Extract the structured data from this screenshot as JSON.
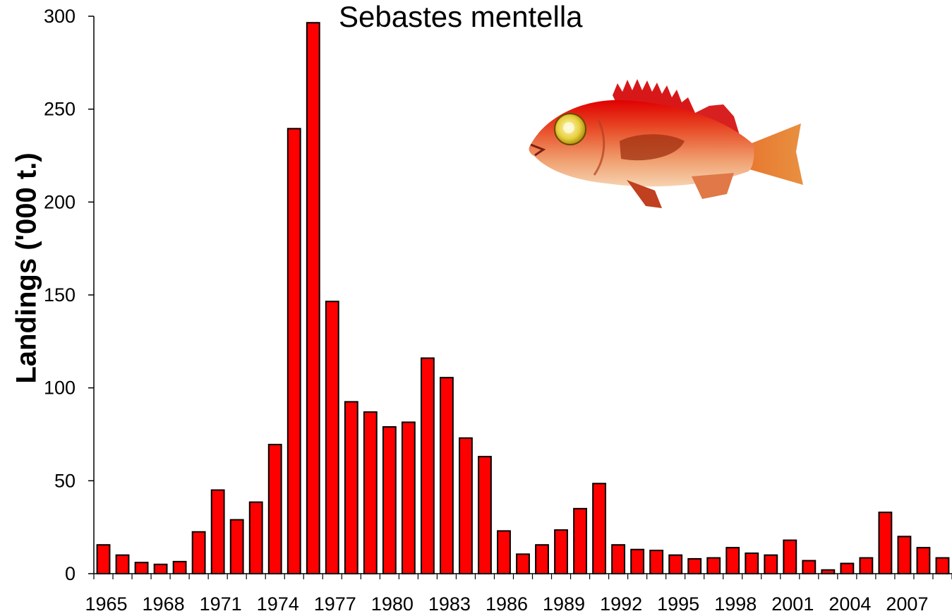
{
  "chart_data": {
    "type": "bar",
    "title": "Sebastes mentella",
    "xlabel": "",
    "ylabel": "Landings ('000 t.)",
    "ylim": [
      0,
      300
    ],
    "yticks": [
      0,
      50,
      100,
      150,
      200,
      250,
      300
    ],
    "xtick_labels": [
      "1965",
      "1968",
      "1971",
      "1974",
      "1977",
      "1980",
      "1983",
      "1986",
      "1989",
      "1992",
      "1995",
      "1998",
      "2001",
      "2004",
      "2007"
    ],
    "categories": [
      1965,
      1966,
      1967,
      1968,
      1969,
      1970,
      1971,
      1972,
      1973,
      1974,
      1975,
      1976,
      1977,
      1978,
      1979,
      1980,
      1981,
      1982,
      1983,
      1984,
      1985,
      1986,
      1987,
      1988,
      1989,
      1990,
      1991,
      1992,
      1993,
      1994,
      1995,
      1996,
      1997,
      1998,
      1999,
      2000,
      2001,
      2002,
      2003,
      2004,
      2005,
      2006,
      2007,
      2008,
      2009
    ],
    "values": [
      15.5,
      10,
      6,
      5,
      6.5,
      22.5,
      45,
      29,
      38.5,
      69.5,
      239.5,
      296.5,
      146.5,
      92.5,
      87,
      79,
      81.5,
      116,
      105.5,
      73,
      63,
      23,
      10.5,
      15.5,
      23.5,
      35,
      48.5,
      15.5,
      13,
      12.5,
      10,
      8,
      8.5,
      14,
      11,
      10,
      18,
      7,
      2,
      5.5,
      8.5,
      33,
      20,
      14,
      8.5
    ],
    "bar_color": "#ff0000",
    "bar_edge_color": "#000000",
    "grid": false,
    "legend": "none",
    "image": "redfish-illustration"
  }
}
